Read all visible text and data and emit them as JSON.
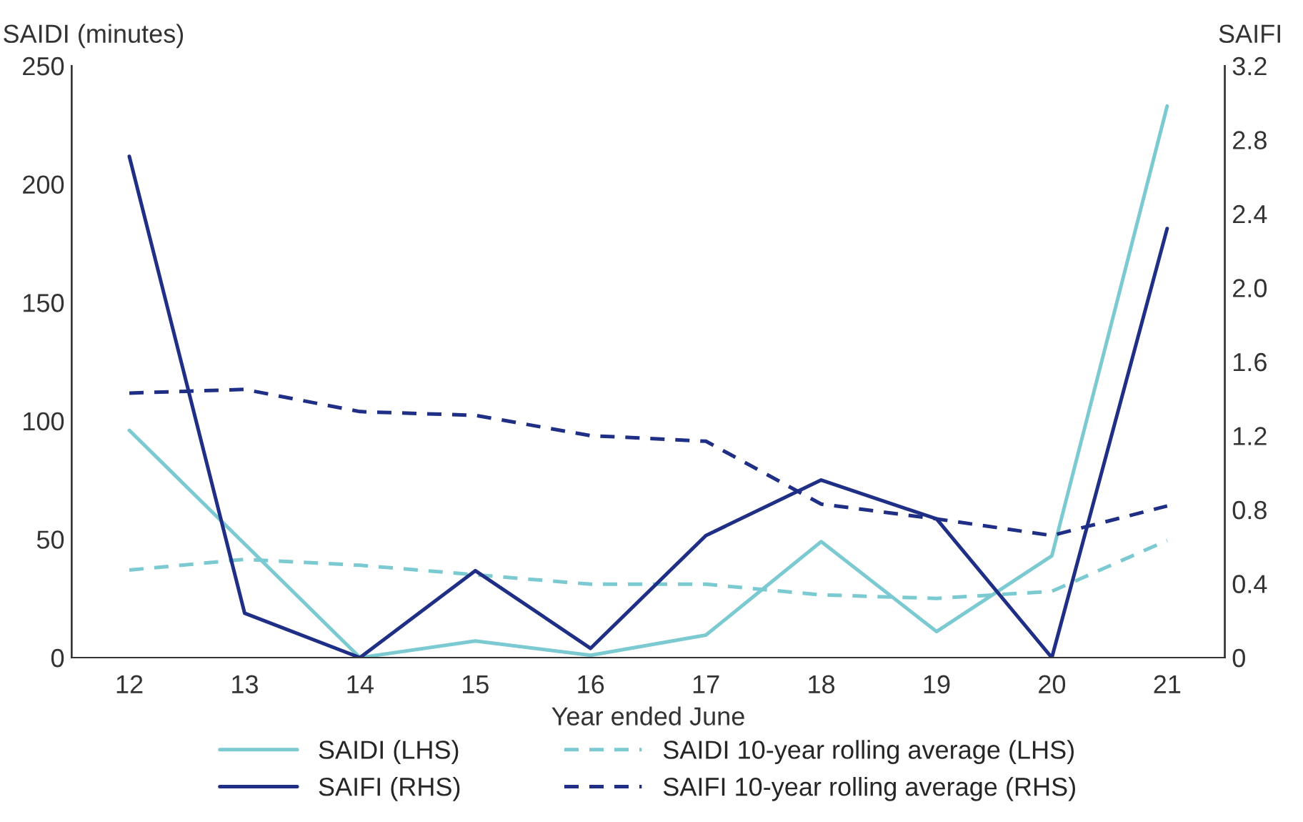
{
  "chart_data": {
    "type": "line",
    "xlabel": "Year ended June",
    "ylabel": "SAIDI (minutes)",
    "y2label": "SAIFI",
    "categories": [
      "12",
      "13",
      "14",
      "15",
      "16",
      "17",
      "18",
      "19",
      "20",
      "21"
    ],
    "series": [
      {
        "name": "SAIDI (LHS)",
        "color": "#7ccad1",
        "line_style": "solid",
        "values": [
          96,
          48,
          0,
          7,
          1,
          9.5,
          49,
          11,
          43,
          233
        ]
      },
      {
        "name": "SAIFI (RHS)",
        "color": "#1f2f86",
        "line_style": "solid",
        "axis": "y2",
        "values": [
          2.71,
          0.24,
          0,
          0.47,
          0.05,
          0.66,
          0.96,
          0.75,
          0,
          2.32
        ]
      },
      {
        "name": "SAIDI 10-year rolling average (LHS)",
        "color": "#7ccad1",
        "line_style": "dashed",
        "values": [
          37,
          41.5,
          39,
          35,
          31,
          31,
          26.5,
          25,
          28,
          49.5
        ]
      },
      {
        "name": "SAIFI 10-year rolling average (RHS)",
        "color": "#1f2f86",
        "line_style": "dashed",
        "axis": "y2",
        "values": [
          1.43,
          1.45,
          1.33,
          1.31,
          1.2,
          1.17,
          0.83,
          0.75,
          0.66,
          0.82
        ]
      }
    ],
    "ylim": [
      0,
      250
    ],
    "yticks": [
      0,
      50,
      100,
      150,
      200,
      250
    ],
    "y2lim": [
      0,
      3.2
    ],
    "y2ticks": [
      {
        "value": 0,
        "label": "0"
      },
      {
        "value": 0.4,
        "label": "0.4"
      },
      {
        "value": 0.8,
        "label": "0.8"
      },
      {
        "value": 1.2,
        "label": "1.2"
      },
      {
        "value": 1.6,
        "label": "1.6"
      },
      {
        "value": 2.0,
        "label": "2.0"
      },
      {
        "value": 2.4,
        "label": "2.4"
      },
      {
        "value": 2.8,
        "label": "2.8"
      },
      {
        "value": 3.2,
        "label": "3.2"
      }
    ],
    "grid": false,
    "legend": "bottom",
    "marker": "none"
  }
}
